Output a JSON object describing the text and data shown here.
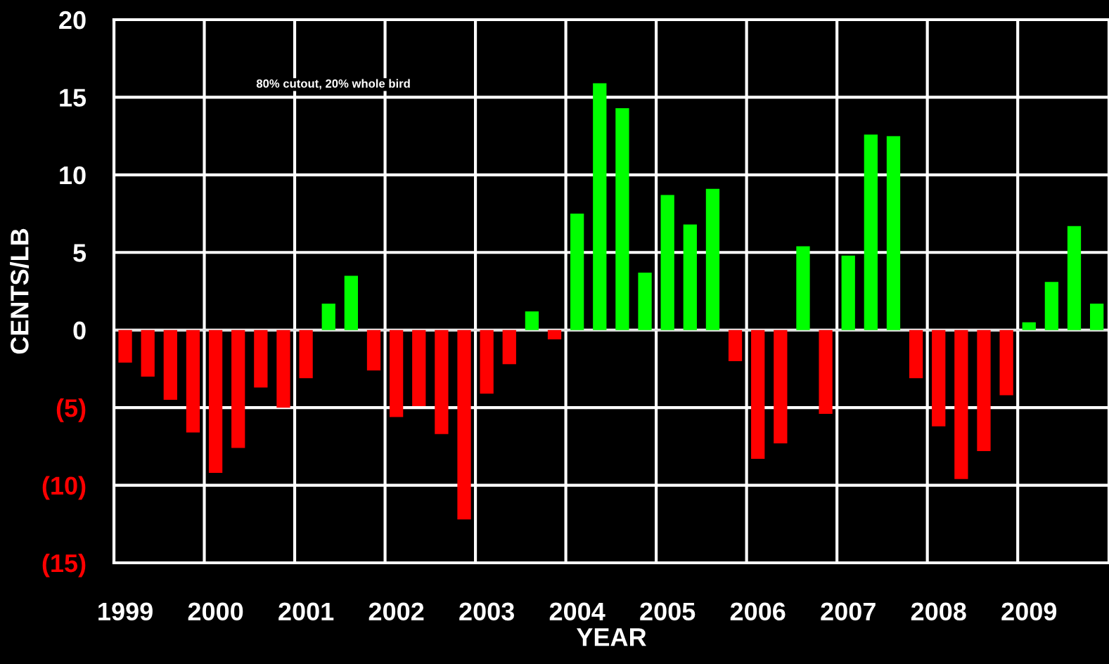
{
  "chart_data": {
    "type": "bar",
    "xlabel": "YEAR",
    "ylabel": "CENTS/LB",
    "annotations": [
      "80% cutout, 20% whole bird"
    ],
    "categories": [
      "1999",
      null,
      null,
      null,
      "2000",
      null,
      null,
      null,
      "2001",
      null,
      null,
      null,
      "2002",
      null,
      null,
      null,
      "2003",
      null,
      null,
      null,
      "2004",
      null,
      null,
      null,
      "2005",
      null,
      null,
      null,
      "2006",
      null,
      null,
      null,
      "2007",
      null,
      null,
      null,
      "2008",
      null,
      null,
      null,
      "2009",
      null,
      null,
      null
    ],
    "values": [
      -2.1,
      -3.0,
      -4.5,
      -6.6,
      -9.2,
      -7.6,
      -3.7,
      -5.0,
      -3.1,
      1.7,
      3.5,
      -2.6,
      -5.6,
      -4.9,
      -6.7,
      -12.2,
      -4.1,
      -2.2,
      1.2,
      -0.6,
      7.5,
      15.9,
      14.3,
      3.7,
      8.7,
      6.8,
      9.1,
      -2.0,
      -8.3,
      -7.3,
      5.4,
      -5.4,
      4.8,
      12.6,
      12.5,
      -3.1,
      -6.2,
      -9.6,
      -7.8,
      -4.2,
      0.5,
      3.1,
      6.7,
      1.7
    ],
    "colors": [
      "#ff0000",
      "#ff0000",
      "#ff0000",
      "#ff0000",
      "#ff0000",
      "#ff0000",
      "#ff0000",
      "#ff0000",
      "#ff0000",
      "#00ff00",
      "#00ff00",
      "#ff0000",
      "#ff0000",
      "#ff0000",
      "#ff0000",
      "#ff0000",
      "#ff0000",
      "#ff0000",
      "#00ff00",
      "#ff0000",
      "#00ff00",
      "#00ff00",
      "#00ff00",
      "#00ff00",
      "#00ff00",
      "#00ff00",
      "#00ff00",
      "#ff0000",
      "#ff0000",
      "#ff0000",
      "#00ff00",
      "#ff0000",
      "#00ff00",
      "#00ff00",
      "#00ff00",
      "#ff0000",
      "#ff0000",
      "#ff0000",
      "#ff0000",
      "#ff0000",
      "#00ff00",
      "#00ff00",
      "#00ff00",
      "#00ff00"
    ],
    "ylim": [
      -15,
      20
    ],
    "yticks": [
      {
        "value": -15,
        "label": "(15)"
      },
      {
        "value": -10,
        "label": "(10)"
      },
      {
        "value": -5,
        "label": "(5)"
      },
      0,
      5,
      10,
      15,
      20
    ],
    "grid": true,
    "legend": false
  }
}
